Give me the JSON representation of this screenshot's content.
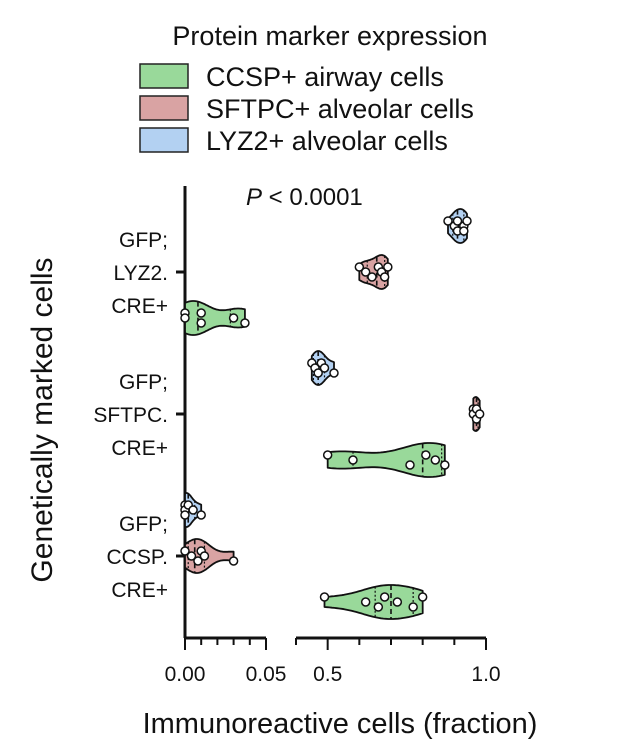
{
  "chart_data": {
    "type": "violin",
    "title": "Protein marker expression",
    "annotation": "P < 0.0001",
    "xlabel": "Immunoreactive cells (fraction)",
    "ylabel": "Genetically marked cells",
    "x_axis_break": true,
    "x_segments": [
      {
        "range": [
          0.0,
          0.05
        ],
        "ticks": [
          0.0,
          0.05
        ],
        "tick_labels": [
          "0.00",
          "0.05"
        ],
        "minor_tick_step": 0.01
      },
      {
        "range": [
          0.4,
          1.0
        ],
        "ticks": [
          0.5,
          1.0
        ],
        "tick_labels": [
          "0.5",
          "1.0"
        ],
        "minor_tick_step": 0.1
      }
    ],
    "categories": [
      {
        "id": "lyz2",
        "label_lines": [
          "GFP;",
          "LYZ2.",
          "CRE+"
        ]
      },
      {
        "id": "sftpc",
        "label_lines": [
          "GFP;",
          "SFTPC.",
          "CRE+"
        ]
      },
      {
        "id": "ccsp",
        "label_lines": [
          "GFP;",
          "CCSP.",
          "CRE+"
        ]
      }
    ],
    "legend": [
      {
        "name": "CCSP+ airway cells",
        "color": "#99d99a"
      },
      {
        "name": "SFTPC+ alveolar cells",
        "color": "#d9a3a3"
      },
      {
        "name": "LYZ2+ alveolar cells",
        "color": "#b3d1f2"
      }
    ],
    "legend_placement": "top",
    "grid": false,
    "series": [
      {
        "name": "LYZ2+ alveolar cells",
        "category": "lyz2",
        "color": "#b3d1f2",
        "points": [
          0.88,
          0.9,
          0.91,
          0.91,
          0.93,
          0.93,
          0.94
        ],
        "median": 0.91,
        "quartiles": [
          0.895,
          0.93
        ]
      },
      {
        "name": "SFTPC+ alveolar cells",
        "category": "lyz2",
        "color": "#d9a3a3",
        "points": [
          0.6,
          0.62,
          0.64,
          0.66,
          0.67,
          0.68,
          0.69
        ],
        "median": 0.655,
        "quartiles": [
          0.625,
          0.68
        ]
      },
      {
        "name": "CCSP+ airway cells",
        "category": "lyz2",
        "color": "#99d99a",
        "points": [
          0.0,
          0.0,
          0.01,
          0.01,
          0.03,
          0.037
        ],
        "median": 0.008,
        "quartiles": [
          0.0,
          0.028
        ]
      },
      {
        "name": "LYZ2+ alveolar cells",
        "category": "sftpc",
        "color": "#b3d1f2",
        "points": [
          0.45,
          0.46,
          0.47,
          0.48,
          0.49,
          0.52
        ],
        "median": 0.47,
        "quartiles": [
          0.455,
          0.49
        ]
      },
      {
        "name": "SFTPC+ alveolar cells",
        "category": "sftpc",
        "color": "#d9a3a3",
        "points": [
          0.96,
          0.96,
          0.97,
          0.97,
          0.98
        ],
        "median": 0.97,
        "quartiles": [
          0.96,
          0.975
        ]
      },
      {
        "name": "CCSP+ airway cells",
        "category": "sftpc",
        "color": "#99d99a",
        "points": [
          0.5,
          0.58,
          0.76,
          0.81,
          0.84,
          0.87
        ],
        "median": 0.8,
        "quartiles": [
          0.58,
          0.86
        ]
      },
      {
        "name": "LYZ2+ alveolar cells",
        "category": "ccsp",
        "color": "#b3d1f2",
        "points": [
          0.0,
          0.0,
          0.0,
          0.002,
          0.005,
          0.01
        ],
        "median": 0.002,
        "quartiles": [
          0.0,
          0.006
        ]
      },
      {
        "name": "SFTPC+ alveolar cells",
        "category": "ccsp",
        "color": "#d9a3a3",
        "points": [
          0.0,
          0.004,
          0.008,
          0.01,
          0.012,
          0.03
        ],
        "median": 0.006,
        "quartiles": [
          0.002,
          0.012
        ]
      },
      {
        "name": "CCSP+ airway cells",
        "category": "ccsp",
        "color": "#99d99a",
        "points": [
          0.49,
          0.62,
          0.66,
          0.68,
          0.72,
          0.77,
          0.8
        ],
        "median": 0.7,
        "quartiles": [
          0.65,
          0.77
        ]
      }
    ]
  }
}
